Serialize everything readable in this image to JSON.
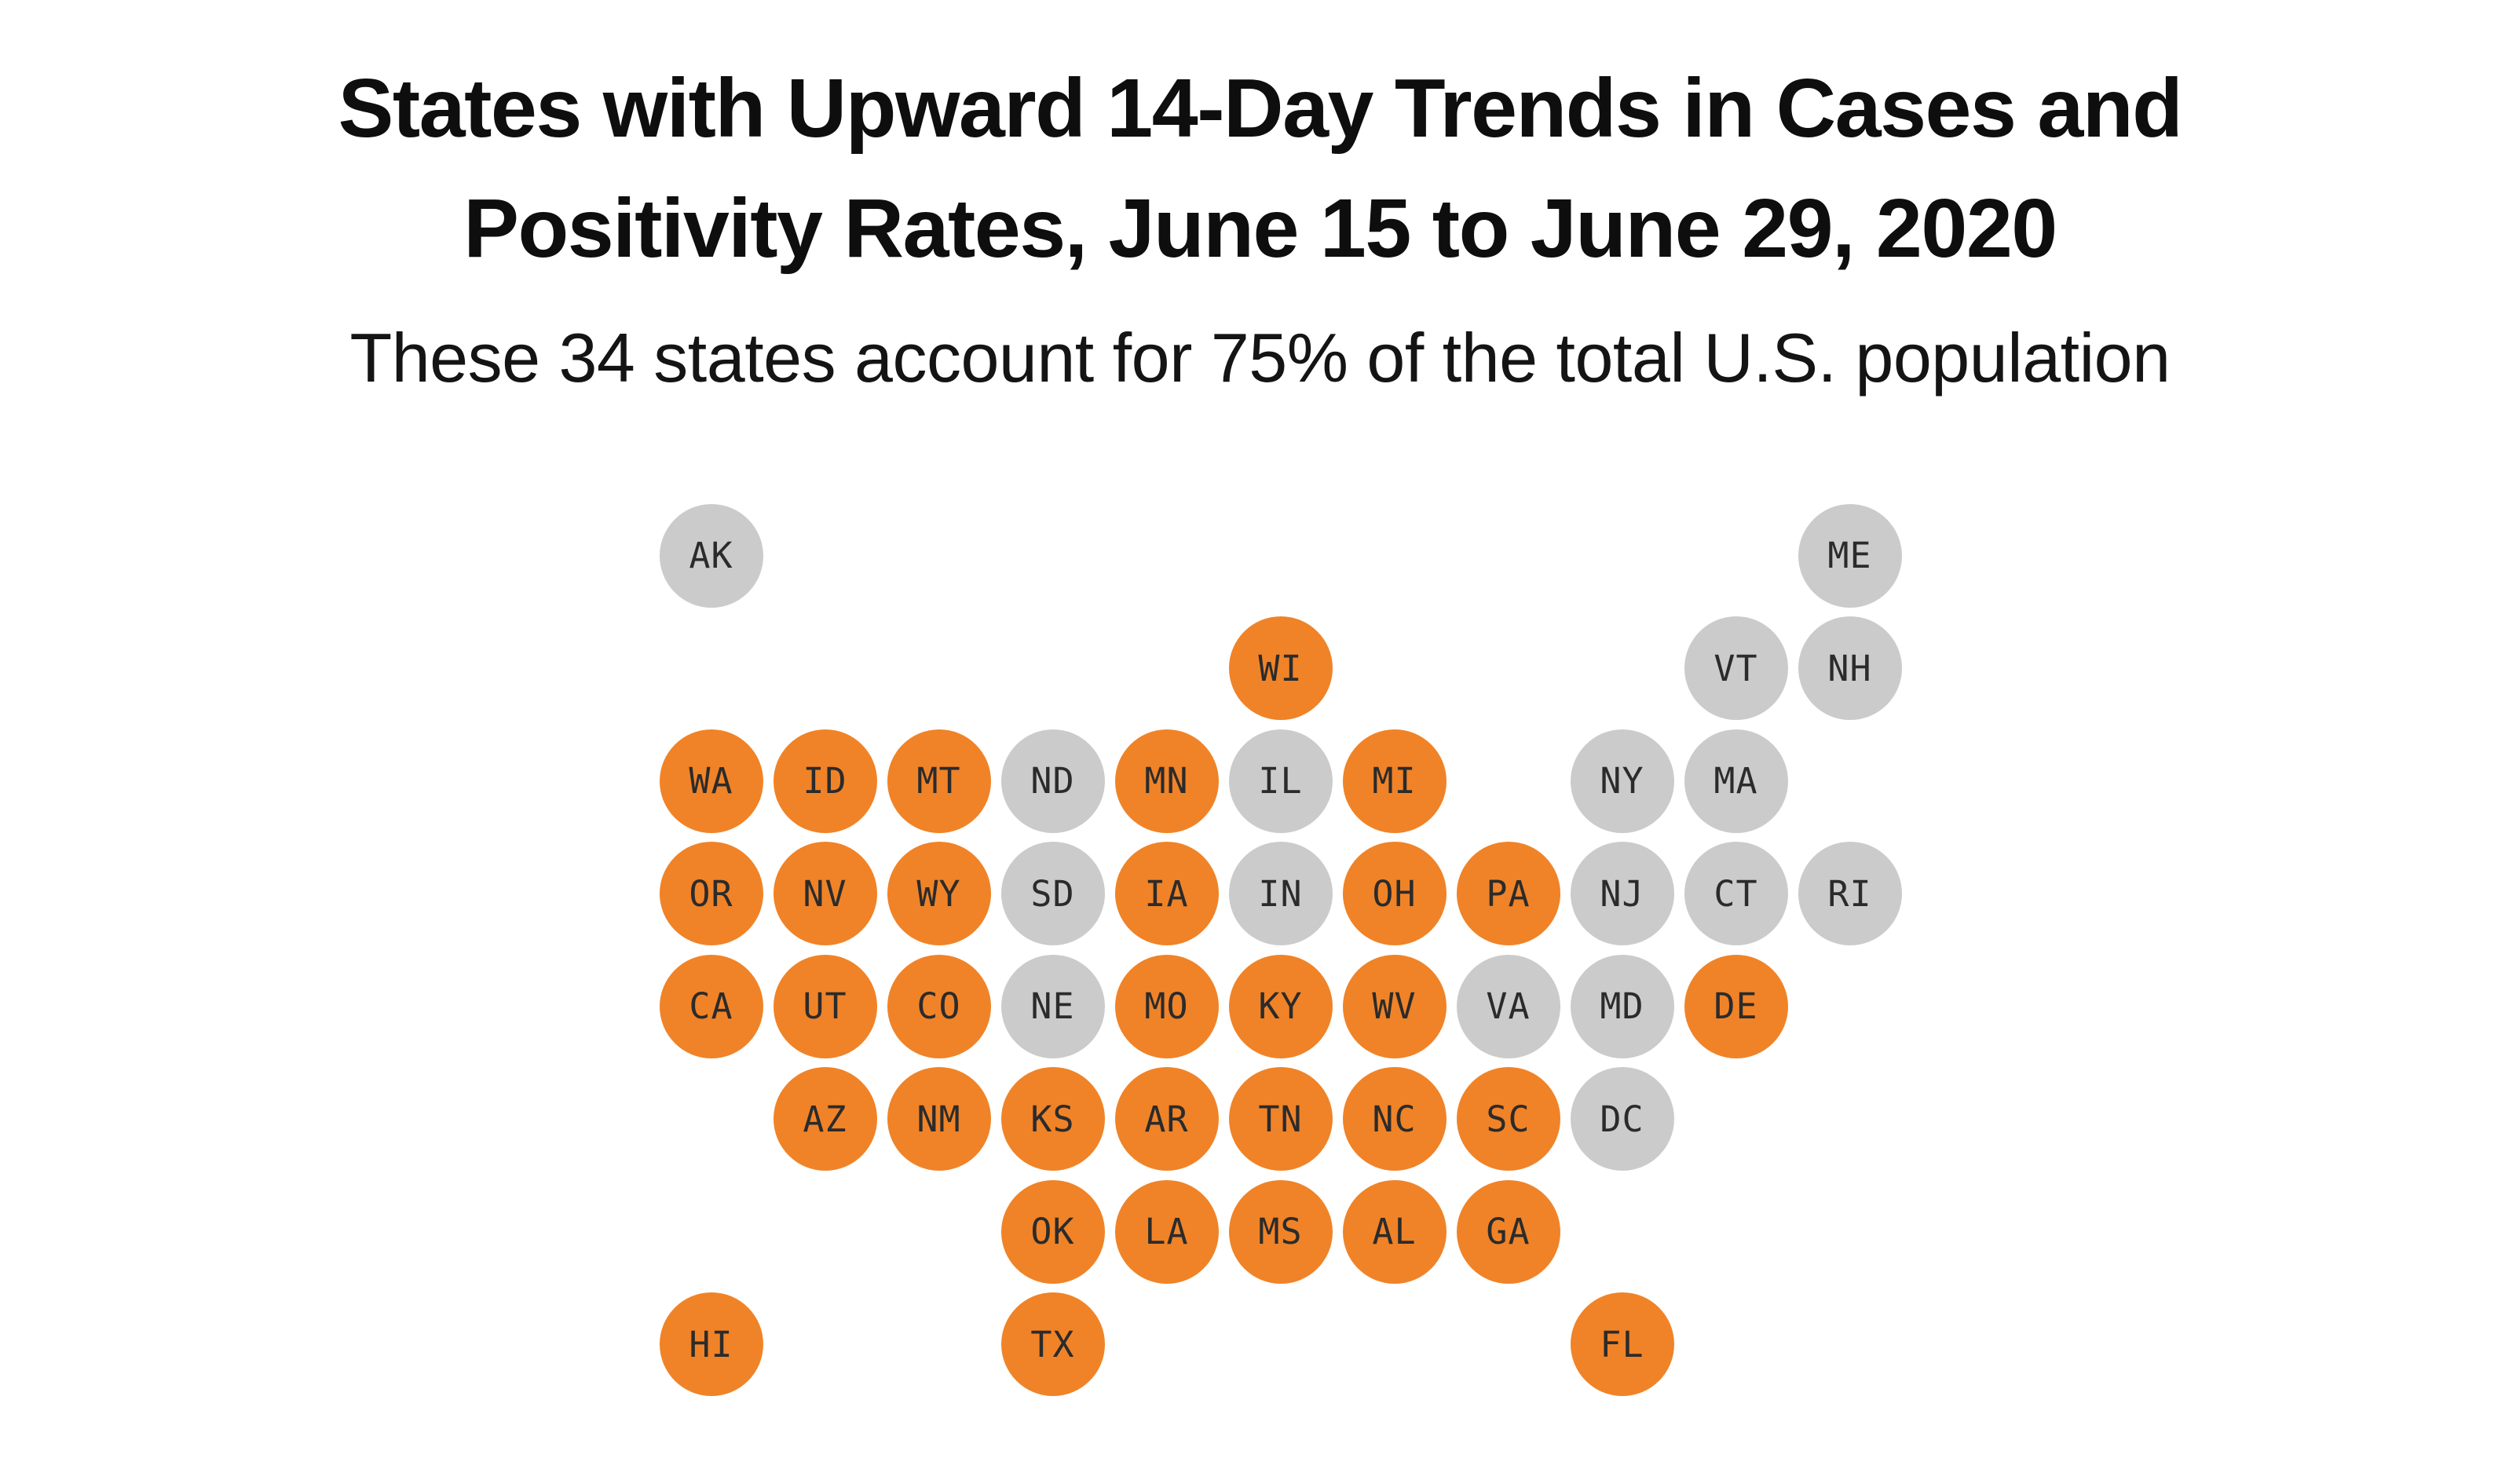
{
  "title": {
    "line1": "States with Upward 14-Day Trends in Cases and",
    "line2": "Positivity Rates, June 15 to June 29, 2020"
  },
  "subtitle": "These 34 states account for 75% of the total U.S. population",
  "chart_data": {
    "type": "heatmap",
    "subtype": "us-state-tile-grid-map",
    "title": "States with Upward 14-Day Trends in Cases and Positivity Rates, June 15 to June 29, 2020",
    "subtitle": "These 34 states account for 75% of the total U.S. population",
    "categories": [
      "upward_trend",
      "no_upward_trend"
    ],
    "colors": {
      "upward_trend": "#F08327",
      "no_upward_trend": "#CBCBCB",
      "tile_label": "#2B2B2B",
      "title_text": "#0E0E0E"
    },
    "upward_state_count": 34,
    "population_share_of_upward_states": "75%",
    "grid": {
      "rows": 8,
      "cols": 11
    },
    "states": [
      {
        "code": "AK",
        "row": 1,
        "col": 1,
        "upward": false
      },
      {
        "code": "ME",
        "row": 1,
        "col": 11,
        "upward": false
      },
      {
        "code": "WI",
        "row": 2,
        "col": 6,
        "upward": true
      },
      {
        "code": "VT",
        "row": 2,
        "col": 10,
        "upward": false
      },
      {
        "code": "NH",
        "row": 2,
        "col": 11,
        "upward": false
      },
      {
        "code": "WA",
        "row": 3,
        "col": 1,
        "upward": true
      },
      {
        "code": "ID",
        "row": 3,
        "col": 2,
        "upward": true
      },
      {
        "code": "MT",
        "row": 3,
        "col": 3,
        "upward": true
      },
      {
        "code": "ND",
        "row": 3,
        "col": 4,
        "upward": false
      },
      {
        "code": "MN",
        "row": 3,
        "col": 5,
        "upward": true
      },
      {
        "code": "IL",
        "row": 3,
        "col": 6,
        "upward": false
      },
      {
        "code": "MI",
        "row": 3,
        "col": 7,
        "upward": true
      },
      {
        "code": "NY",
        "row": 3,
        "col": 9,
        "upward": false
      },
      {
        "code": "MA",
        "row": 3,
        "col": 10,
        "upward": false
      },
      {
        "code": "OR",
        "row": 4,
        "col": 1,
        "upward": true
      },
      {
        "code": "NV",
        "row": 4,
        "col": 2,
        "upward": true
      },
      {
        "code": "WY",
        "row": 4,
        "col": 3,
        "upward": true
      },
      {
        "code": "SD",
        "row": 4,
        "col": 4,
        "upward": false
      },
      {
        "code": "IA",
        "row": 4,
        "col": 5,
        "upward": true
      },
      {
        "code": "IN",
        "row": 4,
        "col": 6,
        "upward": false
      },
      {
        "code": "OH",
        "row": 4,
        "col": 7,
        "upward": true
      },
      {
        "code": "PA",
        "row": 4,
        "col": 8,
        "upward": true
      },
      {
        "code": "NJ",
        "row": 4,
        "col": 9,
        "upward": false
      },
      {
        "code": "CT",
        "row": 4,
        "col": 10,
        "upward": false
      },
      {
        "code": "RI",
        "row": 4,
        "col": 11,
        "upward": false
      },
      {
        "code": "CA",
        "row": 5,
        "col": 1,
        "upward": true
      },
      {
        "code": "UT",
        "row": 5,
        "col": 2,
        "upward": true
      },
      {
        "code": "CO",
        "row": 5,
        "col": 3,
        "upward": true
      },
      {
        "code": "NE",
        "row": 5,
        "col": 4,
        "upward": false
      },
      {
        "code": "MO",
        "row": 5,
        "col": 5,
        "upward": true
      },
      {
        "code": "KY",
        "row": 5,
        "col": 6,
        "upward": true
      },
      {
        "code": "WV",
        "row": 5,
        "col": 7,
        "upward": true
      },
      {
        "code": "VA",
        "row": 5,
        "col": 8,
        "upward": false
      },
      {
        "code": "MD",
        "row": 5,
        "col": 9,
        "upward": false
      },
      {
        "code": "DE",
        "row": 5,
        "col": 10,
        "upward": true
      },
      {
        "code": "AZ",
        "row": 6,
        "col": 2,
        "upward": true
      },
      {
        "code": "NM",
        "row": 6,
        "col": 3,
        "upward": true
      },
      {
        "code": "KS",
        "row": 6,
        "col": 4,
        "upward": true
      },
      {
        "code": "AR",
        "row": 6,
        "col": 5,
        "upward": true
      },
      {
        "code": "TN",
        "row": 6,
        "col": 6,
        "upward": true
      },
      {
        "code": "NC",
        "row": 6,
        "col": 7,
        "upward": true
      },
      {
        "code": "SC",
        "row": 6,
        "col": 8,
        "upward": true
      },
      {
        "code": "DC",
        "row": 6,
        "col": 9,
        "upward": false
      },
      {
        "code": "OK",
        "row": 7,
        "col": 4,
        "upward": true
      },
      {
        "code": "LA",
        "row": 7,
        "col": 5,
        "upward": true
      },
      {
        "code": "MS",
        "row": 7,
        "col": 6,
        "upward": true
      },
      {
        "code": "AL",
        "row": 7,
        "col": 7,
        "upward": true
      },
      {
        "code": "GA",
        "row": 7,
        "col": 8,
        "upward": true
      },
      {
        "code": "HI",
        "row": 8,
        "col": 1,
        "upward": true
      },
      {
        "code": "TX",
        "row": 8,
        "col": 4,
        "upward": true
      },
      {
        "code": "FL",
        "row": 8,
        "col": 9,
        "upward": true
      }
    ]
  }
}
